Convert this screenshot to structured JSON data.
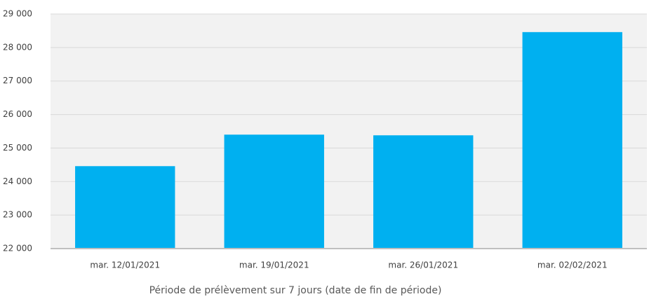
{
  "chart_data": {
    "type": "bar",
    "x_label": "Période de prélèvement sur 7 jours (date de fin de période)",
    "categories": [
      "mar. 12/01/2021",
      "mar. 19/01/2021",
      "mar. 26/01/2021",
      "mar. 02/02/2021"
    ],
    "values": [
      24460,
      25400,
      25380,
      28460
    ],
    "color": "#00b0f0",
    "ylim": [
      22000,
      29000
    ],
    "yticks": [
      {
        "value": 22000,
        "label": "22 000"
      },
      {
        "value": 23000,
        "label": "23 000"
      },
      {
        "value": 24000,
        "label": "24 000"
      },
      {
        "value": 25000,
        "label": "25 000"
      },
      {
        "value": 26000,
        "label": "26 000"
      },
      {
        "value": 27000,
        "label": "27 000"
      },
      {
        "value": 28000,
        "label": "28 000"
      },
      {
        "value": 29000,
        "label": "29 000"
      }
    ],
    "grid": true
  }
}
